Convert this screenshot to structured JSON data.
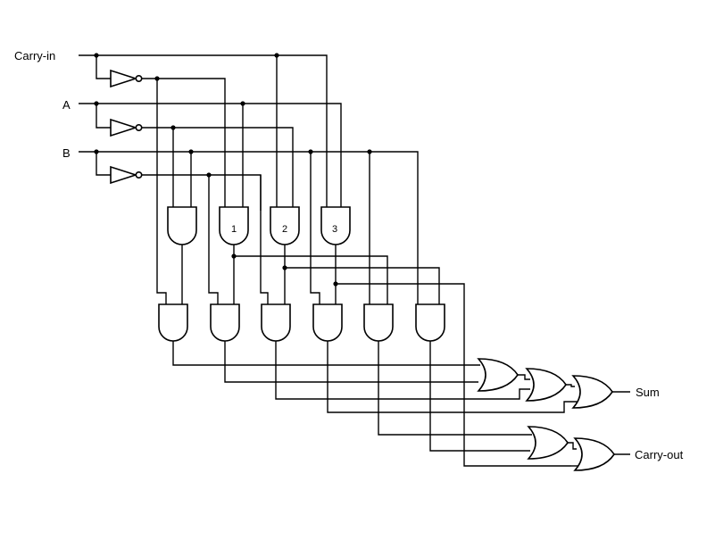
{
  "diagram": {
    "inputs": {
      "carry_in": "Carry-in",
      "a": "A",
      "b": "B"
    },
    "outputs": {
      "sum": "Sum",
      "carry_out": "Carry-out"
    },
    "gate_numbers": [
      "1",
      "2",
      "3"
    ]
  }
}
